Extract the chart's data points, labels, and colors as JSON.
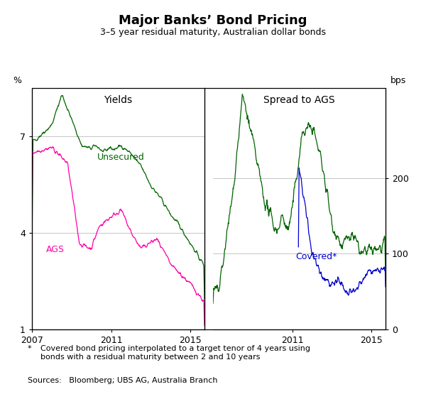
{
  "title": "Major Banks’ Bond Pricing",
  "subtitle": "3–5 year residual maturity, Australian dollar bonds",
  "left_label": "Yields",
  "right_label": "Spread to AGS",
  "left_ylabel": "%",
  "right_ylabel": "bps",
  "footnote_star": "*",
  "footnote_text": "Covered bond pricing interpolated to a target tenor of 4 years using\nbonds with a residual maturity between 2 and 10 years",
  "sources": "Sources:   Bloomberg; UBS AG, Australia Branch",
  "colors": {
    "unsecured": "#006400",
    "ags": "#FF00AA",
    "covered": "#0000CC"
  },
  "left_ylim": [
    1,
    8.5
  ],
  "left_yticks": [
    1,
    4,
    7
  ],
  "right_ylim": [
    0,
    320
  ],
  "right_yticks": [
    0,
    100,
    200
  ],
  "grid_color": "#bbbbbb",
  "left_xticks": [
    2007,
    2011,
    2015
  ],
  "right_xticks": [
    2011,
    2015
  ],
  "left_xlim": [
    2007,
    2015.7
  ],
  "right_xlim": [
    2007,
    2015.7
  ]
}
